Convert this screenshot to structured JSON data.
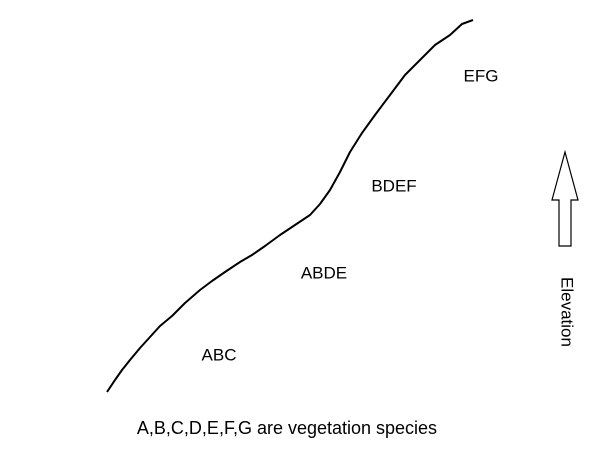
{
  "zones": [
    {
      "label": "ABC"
    },
    {
      "label": "ABDE"
    },
    {
      "label": "BDEF"
    },
    {
      "label": "EFG"
    }
  ],
  "axis_label": "Elevation",
  "caption": "A,B,C,D,E,F,G are vegetation species"
}
